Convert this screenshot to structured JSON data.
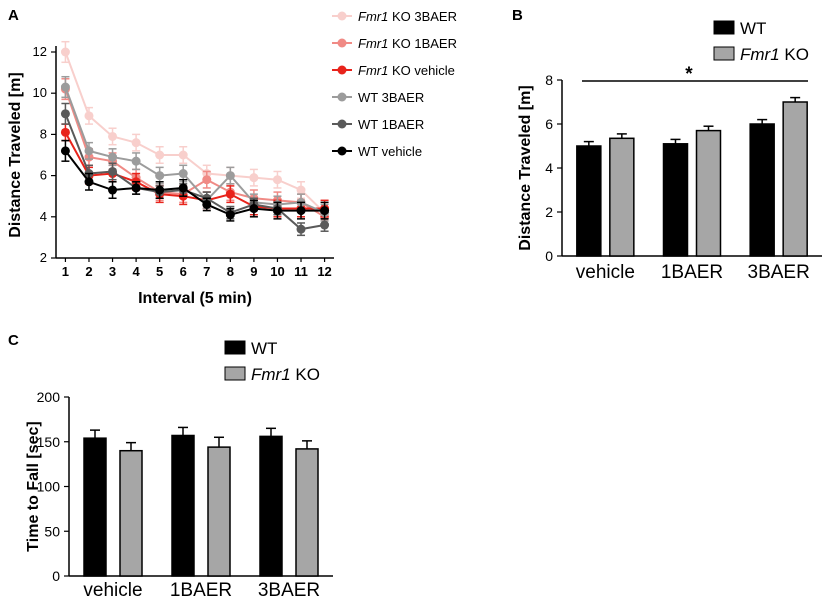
{
  "panels": {
    "A": "A",
    "B": "B",
    "C": "C"
  },
  "significance": "*",
  "chart_data": [
    {
      "id": "A",
      "type": "line",
      "title": "",
      "xlabel": "Interval (5 min)",
      "ylabel": "Distance Traveled [m]",
      "x": [
        1,
        2,
        3,
        4,
        5,
        6,
        7,
        8,
        9,
        10,
        11,
        12
      ],
      "xlim": [
        0.6,
        12.4
      ],
      "ylim": [
        2,
        12
      ],
      "yticks": [
        2,
        4,
        6,
        8,
        10,
        12
      ],
      "series": [
        {
          "name": "WT vehicle",
          "name_italic": "",
          "name_rest": "WT vehicle",
          "color": "#000000",
          "values": [
            7.2,
            5.7,
            5.3,
            5.4,
            5.3,
            5.4,
            4.6,
            4.1,
            4.4,
            4.3,
            4.3,
            4.3
          ],
          "errors": [
            0.5,
            0.4,
            0.4,
            0.3,
            0.4,
            0.4,
            0.3,
            0.3,
            0.4,
            0.4,
            0.4,
            0.4
          ]
        },
        {
          "name": "WT 1BAER",
          "name_italic": "",
          "name_rest": "WT 1BAER",
          "color": "#5a5a5a",
          "values": [
            9.0,
            6.1,
            6.2,
            5.4,
            5.2,
            5.3,
            4.9,
            4.2,
            4.6,
            4.4,
            3.4,
            3.6
          ],
          "errors": [
            0.5,
            0.4,
            0.4,
            0.3,
            0.3,
            0.3,
            0.3,
            0.3,
            0.3,
            0.3,
            0.3,
            0.3
          ]
        },
        {
          "name": "WT 3BAER",
          "name_italic": "",
          "name_rest": "WT 3BAER",
          "color": "#9c9c9c",
          "values": [
            10.3,
            7.2,
            6.9,
            6.7,
            6.0,
            6.1,
            4.8,
            6.0,
            4.7,
            4.6,
            4.7,
            4.2
          ],
          "errors": [
            0.5,
            0.4,
            0.4,
            0.4,
            0.4,
            0.4,
            0.4,
            0.4,
            0.4,
            0.4,
            0.4,
            0.4
          ]
        },
        {
          "name": "Fmr1 KO vehicle",
          "name_italic": "Fmr1",
          "name_rest": " KO vehicle",
          "color": "#e8231b",
          "values": [
            8.1,
            6.0,
            6.1,
            5.7,
            5.1,
            5.0,
            4.8,
            5.1,
            4.5,
            4.4,
            4.4,
            4.4
          ],
          "errors": [
            0.4,
            0.4,
            0.4,
            0.4,
            0.4,
            0.4,
            0.4,
            0.4,
            0.4,
            0.4,
            0.4,
            0.4
          ]
        },
        {
          "name": "Fmr1 KO 1BAER",
          "name_italic": "Fmr1",
          "name_rest": " KO 1BAER",
          "color": "#f08a85",
          "values": [
            10.2,
            6.9,
            6.7,
            5.9,
            5.2,
            5.1,
            5.8,
            5.2,
            4.9,
            4.8,
            4.7,
            4.0
          ],
          "errors": [
            0.5,
            0.4,
            0.4,
            0.4,
            0.4,
            0.4,
            0.4,
            0.4,
            0.4,
            0.4,
            0.4,
            0.4
          ]
        },
        {
          "name": "Fmr1 KO 3BAER",
          "name_italic": "Fmr1",
          "name_rest": " KO 3BAER",
          "color": "#f8cfcc",
          "values": [
            12.0,
            8.9,
            7.9,
            7.6,
            7.0,
            7.0,
            6.1,
            6.0,
            5.9,
            5.8,
            5.3,
            4.2
          ],
          "errors": [
            0.5,
            0.4,
            0.4,
            0.4,
            0.4,
            0.4,
            0.4,
            0.4,
            0.4,
            0.4,
            0.4,
            0.4
          ]
        }
      ],
      "legend_order": [
        5,
        4,
        3,
        2,
        1,
        0
      ],
      "legend_position": "top-right"
    },
    {
      "id": "B",
      "type": "bar",
      "title": "",
      "xlabel": "",
      "ylabel": "Distance Traveled [m]",
      "categories": [
        "vehicle",
        "1BAER",
        "3BAER"
      ],
      "ylim": [
        0,
        8
      ],
      "yticks": [
        0,
        2,
        4,
        6,
        8
      ],
      "series": [
        {
          "name": "WT",
          "name_italic": "",
          "name_rest": "WT",
          "color": "#000000",
          "values": [
            5.0,
            5.1,
            6.0
          ],
          "errors": [
            0.2,
            0.2,
            0.2
          ]
        },
        {
          "name": "Fmr1 KO",
          "name_italic": "Fmr1",
          "name_rest": " KO",
          "color": "#a6a6a6",
          "values": [
            5.35,
            5.7,
            7.0
          ],
          "errors": [
            0.2,
            0.2,
            0.2
          ]
        }
      ],
      "legend_position": "top"
    },
    {
      "id": "C",
      "type": "bar",
      "title": "",
      "xlabel": "",
      "ylabel": "Time to Fall [sec]",
      "categories": [
        "vehicle",
        "1BAER",
        "3BAER"
      ],
      "ylim": [
        0,
        200
      ],
      "yticks": [
        0,
        50,
        100,
        150,
        200
      ],
      "series": [
        {
          "name": "WT",
          "name_italic": "",
          "name_rest": "WT",
          "color": "#000000",
          "values": [
            154,
            157,
            156
          ],
          "errors": [
            9,
            9,
            9
          ]
        },
        {
          "name": "Fmr1 KO",
          "name_italic": "Fmr1",
          "name_rest": " KO",
          "color": "#a6a6a6",
          "values": [
            140,
            144,
            142
          ],
          "errors": [
            9,
            11,
            9
          ]
        }
      ],
      "legend_position": "top"
    }
  ]
}
